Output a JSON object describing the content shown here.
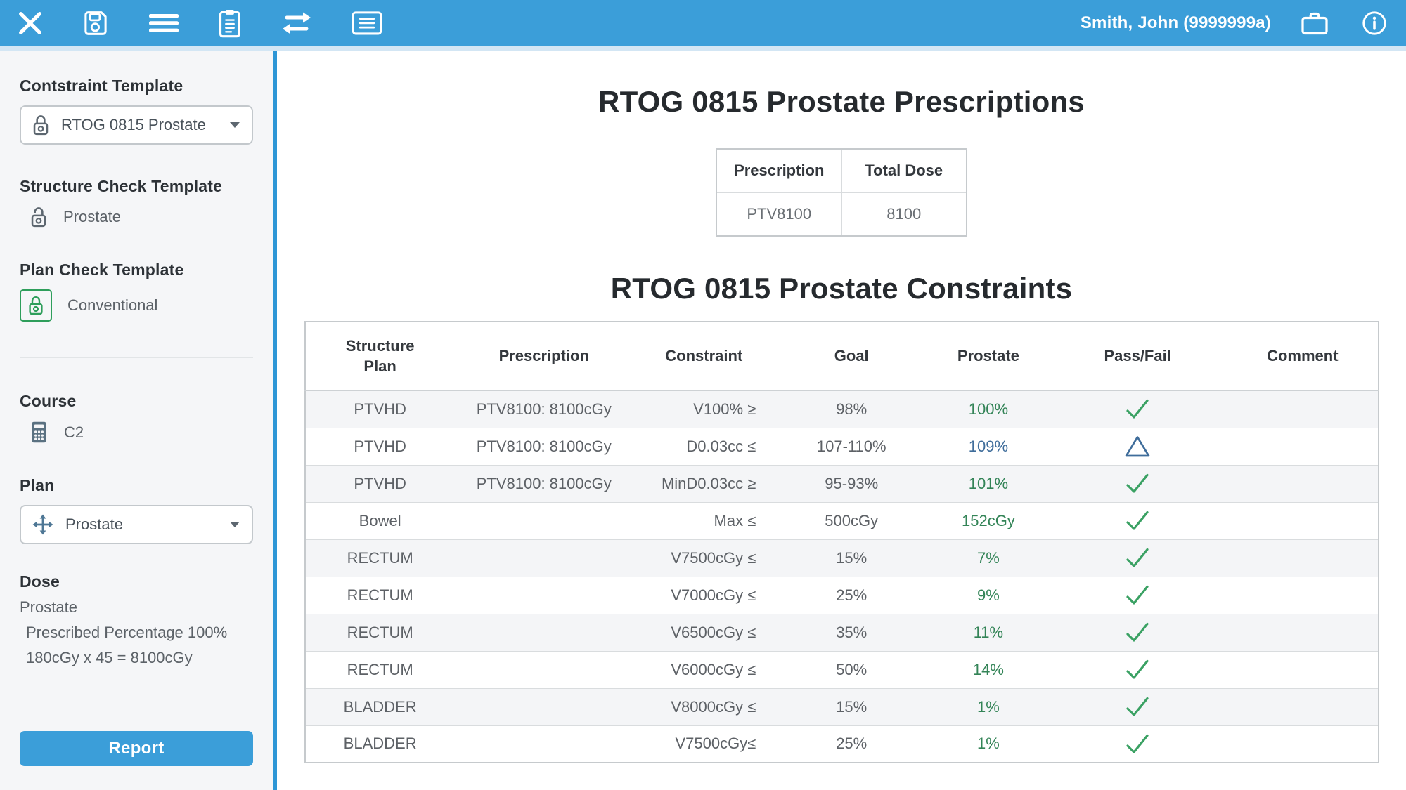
{
  "colors": {
    "accent": "#3b9ed9",
    "divider": "#2d96d6",
    "pass_green": "#3aa163",
    "value_green": "#338457",
    "warn_blue": "#3f6d9b"
  },
  "toolbar": {
    "user": "Smith, John (9999999a)",
    "left_icons": [
      "close-icon",
      "save-icon",
      "menu-icon",
      "clipboard-icon",
      "transfer-icon",
      "note-icon"
    ],
    "right_icons": [
      "briefcase-icon",
      "info-icon"
    ]
  },
  "sidebar": {
    "constraint_template": {
      "label": "Contstraint Template",
      "value": "RTOG 0815 Prostate"
    },
    "structure_check_template": {
      "label": "Structure Check Template",
      "value": "Prostate"
    },
    "plan_check_template": {
      "label": "Plan Check Template",
      "value": "Conventional"
    },
    "course": {
      "label": "Course",
      "value": "C2"
    },
    "plan": {
      "label": "Plan",
      "value": "Prostate"
    },
    "dose": {
      "label": "Dose",
      "line1": "Prostate",
      "line2": "Prescribed Percentage 100%",
      "line3": "180cGy x 45 = 8100cGy"
    },
    "report_button": "Report"
  },
  "main": {
    "prescriptions_title": "RTOG 0815 Prostate Prescriptions",
    "constraints_title": "RTOG 0815 Prostate Constraints",
    "prescription_table": {
      "headers": [
        "Prescription",
        "Total Dose"
      ],
      "rows": [
        [
          "PTV8100",
          "8100"
        ]
      ]
    },
    "constraints_table": {
      "headers": [
        "Structure\nPlan",
        "Prescription",
        "Constraint",
        "Goal",
        "Prostate",
        "Pass/Fail",
        "Comment"
      ],
      "rows": [
        {
          "structure": "PTVHD",
          "prescription": "PTV8100: 8100cGy",
          "constraint": "V100% ≥",
          "goal": "98%",
          "result": "100%",
          "result_color": "green",
          "status": "pass",
          "comment": ""
        },
        {
          "structure": "PTVHD",
          "prescription": "PTV8100: 8100cGy",
          "constraint": "D0.03cc ≤",
          "goal": "107-110%",
          "result": "109%",
          "result_color": "blue",
          "status": "warn",
          "comment": ""
        },
        {
          "structure": "PTVHD",
          "prescription": "PTV8100: 8100cGy",
          "constraint": "MinD0.03cc ≥",
          "goal": "95-93%",
          "result": "101%",
          "result_color": "green",
          "status": "pass",
          "comment": ""
        },
        {
          "structure": "Bowel",
          "prescription": "",
          "constraint": "Max ≤",
          "goal": "500cGy",
          "result": "152cGy",
          "result_color": "green",
          "status": "pass",
          "comment": ""
        },
        {
          "structure": "RECTUM",
          "prescription": "",
          "constraint": "V7500cGy ≤",
          "goal": "15%",
          "result": "7%",
          "result_color": "green",
          "status": "pass",
          "comment": ""
        },
        {
          "structure": "RECTUM",
          "prescription": "",
          "constraint": "V7000cGy ≤",
          "goal": "25%",
          "result": "9%",
          "result_color": "green",
          "status": "pass",
          "comment": ""
        },
        {
          "structure": "RECTUM",
          "prescription": "",
          "constraint": "V6500cGy ≤",
          "goal": "35%",
          "result": "11%",
          "result_color": "green",
          "status": "pass",
          "comment": ""
        },
        {
          "structure": "RECTUM",
          "prescription": "",
          "constraint": "V6000cGy ≤",
          "goal": "50%",
          "result": "14%",
          "result_color": "green",
          "status": "pass",
          "comment": ""
        },
        {
          "structure": "BLADDER",
          "prescription": "",
          "constraint": "V8000cGy ≤",
          "goal": "15%",
          "result": "1%",
          "result_color": "green",
          "status": "pass",
          "comment": ""
        },
        {
          "structure": "BLADDER",
          "prescription": "",
          "constraint": "V7500cGy≤",
          "goal": "25%",
          "result": "1%",
          "result_color": "green",
          "status": "pass",
          "comment": ""
        }
      ]
    }
  }
}
